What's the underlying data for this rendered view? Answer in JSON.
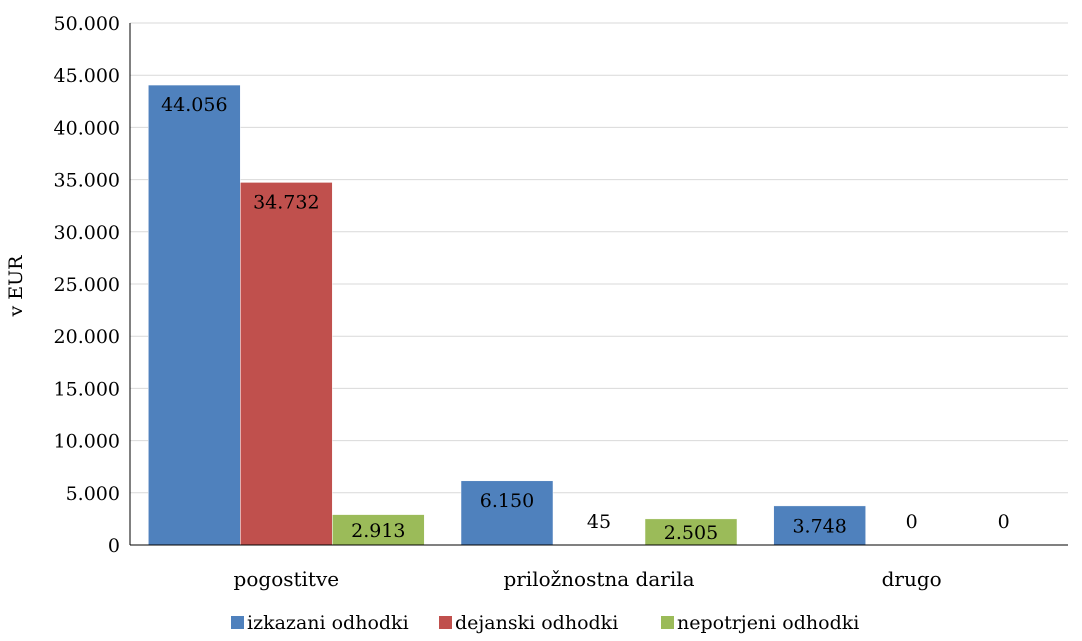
{
  "chart_data": {
    "type": "bar",
    "ylabel": "v EUR",
    "ylim": [
      0,
      50000
    ],
    "yticks": [
      0,
      5000,
      10000,
      15000,
      20000,
      25000,
      30000,
      35000,
      40000,
      45000,
      50000
    ],
    "ytick_labels": [
      "0",
      "5.000",
      "10.000",
      "15.000",
      "20.000",
      "25.000",
      "30.000",
      "35.000",
      "40.000",
      "45.000",
      "50.000"
    ],
    "grid": true,
    "legend_position": "bottom",
    "categories": [
      "pogostitve",
      "priložnostna darila",
      "drugo"
    ],
    "series": [
      {
        "name": "izkazani odhodki",
        "color": "#4F81BD",
        "values": [
          44056,
          6150,
          3748
        ],
        "labels": [
          "44.056",
          "6.150",
          "3.748"
        ]
      },
      {
        "name": "dejanski odhodki",
        "color": "#C0504D",
        "values": [
          34732,
          45,
          0
        ],
        "labels": [
          "34.732",
          "45",
          "0"
        ]
      },
      {
        "name": "nepotrjeni odhodki",
        "color": "#9BBB59",
        "values": [
          2913,
          2505,
          0
        ],
        "labels": [
          "2.913",
          "2.505",
          "0"
        ]
      }
    ]
  }
}
